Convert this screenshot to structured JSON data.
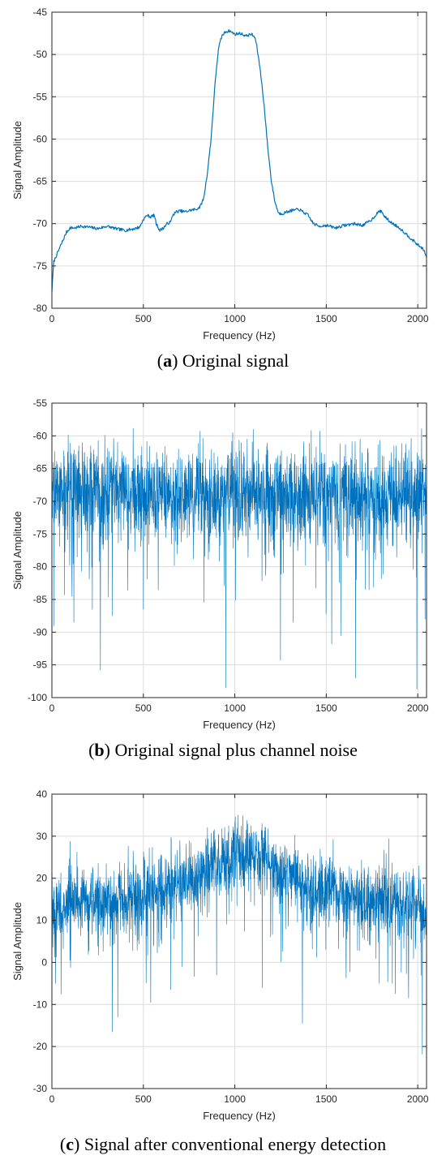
{
  "chart_data": [
    {
      "type": "line",
      "panel_letter": "a",
      "caption": "Original signal",
      "xlabel": "Frequency (Hz)",
      "ylabel": "Signal Amplitude",
      "xlim": [
        0,
        2048
      ],
      "ylim": [
        -80,
        -45
      ],
      "xticks": [
        0,
        500,
        1000,
        1500,
        2000
      ],
      "yticks": [
        -80,
        -75,
        -70,
        -65,
        -60,
        -55,
        -50,
        -45
      ],
      "grid": true,
      "line_color": "#0072BD",
      "series": [
        {
          "x": [
            0,
            10,
            20,
            40,
            60,
            80,
            100,
            130,
            160,
            200,
            250,
            300,
            350,
            400,
            450,
            480,
            500,
            520,
            540,
            560,
            570,
            590,
            610,
            630,
            650,
            660,
            680,
            700,
            730,
            760,
            790,
            810,
            830,
            850,
            870,
            880,
            890,
            900,
            910,
            920,
            930,
            950,
            970,
            1000,
            1030,
            1060,
            1090,
            1110,
            1120,
            1140,
            1160,
            1180,
            1200,
            1220,
            1240,
            1260,
            1300,
            1350,
            1400,
            1430,
            1460,
            1500,
            1550,
            1600,
            1650,
            1700,
            1750,
            1780,
            1800,
            1820,
            1850,
            1900,
            1950,
            2000,
            2030,
            2048
          ],
          "y": [
            -78,
            -74.5,
            -74,
            -73,
            -72,
            -71,
            -70.5,
            -70.5,
            -70.3,
            -70.4,
            -70.6,
            -70.3,
            -70.6,
            -70.8,
            -70.6,
            -70.4,
            -69.5,
            -69,
            -69.2,
            -69,
            -70,
            -70.8,
            -70.5,
            -70,
            -69.8,
            -69,
            -68.6,
            -68.5,
            -68.6,
            -68.4,
            -68.3,
            -68,
            -67,
            -64,
            -60,
            -57,
            -54,
            -51.5,
            -49.5,
            -48.5,
            -47.8,
            -47.3,
            -47.2,
            -47.6,
            -47.5,
            -47.8,
            -47.6,
            -48,
            -49,
            -52,
            -56,
            -61,
            -65,
            -67.5,
            -68.8,
            -68.8,
            -68.5,
            -68.3,
            -69,
            -70,
            -70.3,
            -70.2,
            -70.5,
            -70.2,
            -70,
            -70.2,
            -69.5,
            -68.7,
            -68.5,
            -69.2,
            -69.8,
            -70.5,
            -71.5,
            -72.5,
            -73,
            -74
          ]
        }
      ]
    },
    {
      "type": "line",
      "panel_letter": "b",
      "caption": "Original signal plus channel noise",
      "xlabel": "Frequency (Hz)",
      "ylabel": "Signal Amplitude",
      "xlim": [
        0,
        2048
      ],
      "ylim": [
        -100,
        -55
      ],
      "xticks": [
        0,
        500,
        1000,
        1500,
        2000
      ],
      "yticks": [
        -100,
        -95,
        -90,
        -85,
        -80,
        -75,
        -70,
        -65,
        -60,
        -55
      ],
      "grid": true,
      "line_color": "#0072BD",
      "noise": {
        "count": 2048,
        "center": -69,
        "spread": 3.6,
        "max": -58.5,
        "min": -98.8
      },
      "noise_dips": [
        [
          12,
          -89
        ],
        [
          120,
          -88.5
        ],
        [
          265,
          -95.8
        ],
        [
          330,
          -87.5
        ],
        [
          500,
          -86.5
        ],
        [
          950,
          -98.5
        ],
        [
          1250,
          -94.3
        ],
        [
          1320,
          -88.5
        ],
        [
          1530,
          -91.8
        ],
        [
          1580,
          -90.5
        ],
        [
          1660,
          -97
        ],
        [
          1995,
          -98.7
        ],
        [
          2040,
          -88
        ]
      ]
    },
    {
      "type": "line",
      "panel_letter": "c",
      "caption": "Signal after conventional energy detection",
      "xlabel": "Frequency (Hz)",
      "ylabel": "Signal Amplitude",
      "xlim": [
        0,
        2048
      ],
      "ylim": [
        -30,
        40
      ],
      "xticks": [
        0,
        500,
        1000,
        1500,
        2000
      ],
      "yticks": [
        -30,
        -20,
        -10,
        0,
        10,
        20,
        30,
        40
      ],
      "grid": true,
      "line_color": "#0072BD",
      "trend": {
        "x": [
          0,
          500,
          800,
          1000,
          1100,
          1300,
          1600,
          2048
        ],
        "y": [
          13,
          16,
          20,
          26,
          26,
          20,
          16,
          13
        ]
      },
      "noise": {
        "count": 2048,
        "spread": 4.2,
        "max": 35.5,
        "min": -21.8
      },
      "noise_dips": [
        [
          20,
          -5
        ],
        [
          50,
          -7.5
        ],
        [
          330,
          -16.5
        ],
        [
          360,
          -13
        ],
        [
          540,
          -9.5
        ],
        [
          650,
          -6.5
        ],
        [
          900,
          -3
        ],
        [
          1150,
          -6
        ],
        [
          1370,
          -14.5
        ],
        [
          1790,
          -5
        ],
        [
          1950,
          -8.5
        ],
        [
          2025,
          -21.8
        ]
      ]
    }
  ]
}
